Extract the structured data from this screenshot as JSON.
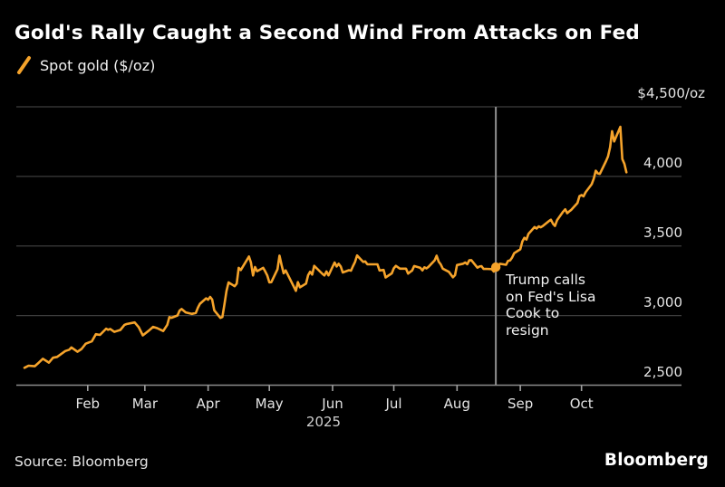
{
  "header": {
    "title": "Gold's Rally Caught a Second Wind From Attacks on Fed",
    "legend": {
      "marker_icon": "orange-slash-icon",
      "label": "Spot gold ($/oz)"
    }
  },
  "footer": {
    "source": "Source: Bloomberg",
    "logo": "Bloomberg"
  },
  "colors": {
    "background": "#000000",
    "line": "#F5A32B",
    "grid": "#3D3D3D",
    "axis": "#8C8C8C",
    "tick": "#A0A0A0",
    "event_line": "#8F8F8F",
    "title_text": "#FFFFFF",
    "label_text": "#E4E4E4"
  },
  "chart_data": {
    "type": "line",
    "title": "Gold's Rally Caught a Second Wind From Attacks on Fed",
    "x_axis": {
      "months": [
        "Feb",
        "Mar",
        "Apr",
        "May",
        "Jun",
        "Jul",
        "Aug",
        "Sep",
        "Oct"
      ],
      "year_label": "2025",
      "domain": [
        "2024-12-28",
        "2025-11-19"
      ],
      "grid": false
    },
    "y_axis": {
      "range": [
        2500,
        4500
      ],
      "unit": "$/oz",
      "ticks": [
        {
          "value": 4500,
          "label": "$4,500/oz"
        },
        {
          "value": 4000,
          "label": "4,000"
        },
        {
          "value": 3500,
          "label": "3,500"
        },
        {
          "value": 3000,
          "label": "3,000"
        },
        {
          "value": 2500,
          "label": "2,500"
        }
      ],
      "grid": true,
      "position": "right"
    },
    "annotation": {
      "date": "2025-08-20",
      "value": 3348,
      "text": "Trump calls on Fed's Lisa Cook to resign",
      "lines": [
        "Trump calls",
        "on Fed's Lisa",
        "Cook to",
        "resign"
      ]
    },
    "series": [
      {
        "name": "Spot gold ($/oz)",
        "points": [
          [
            "2025-01-01",
            2625
          ],
          [
            "2025-01-03",
            2640
          ],
          [
            "2025-01-06",
            2636
          ],
          [
            "2025-01-08",
            2662
          ],
          [
            "2025-01-10",
            2690
          ],
          [
            "2025-01-13",
            2662
          ],
          [
            "2025-01-15",
            2697
          ],
          [
            "2025-01-17",
            2703
          ],
          [
            "2025-01-21",
            2745
          ],
          [
            "2025-01-23",
            2755
          ],
          [
            "2025-01-24",
            2771
          ],
          [
            "2025-01-27",
            2740
          ],
          [
            "2025-01-29",
            2760
          ],
          [
            "2025-01-31",
            2798
          ],
          [
            "2025-02-03",
            2815
          ],
          [
            "2025-02-05",
            2866
          ],
          [
            "2025-02-07",
            2861
          ],
          [
            "2025-02-10",
            2906
          ],
          [
            "2025-02-11",
            2898
          ],
          [
            "2025-02-12",
            2904
          ],
          [
            "2025-02-14",
            2883
          ],
          [
            "2025-02-17",
            2897
          ],
          [
            "2025-02-19",
            2933
          ],
          [
            "2025-02-20",
            2939
          ],
          [
            "2025-02-24",
            2951
          ],
          [
            "2025-02-26",
            2916
          ],
          [
            "2025-02-28",
            2858
          ],
          [
            "2025-03-03",
            2892
          ],
          [
            "2025-03-05",
            2919
          ],
          [
            "2025-03-07",
            2910
          ],
          [
            "2025-03-10",
            2889
          ],
          [
            "2025-03-12",
            2934
          ],
          [
            "2025-03-13",
            2989
          ],
          [
            "2025-03-14",
            2984
          ],
          [
            "2025-03-17",
            3001
          ],
          [
            "2025-03-18",
            3035
          ],
          [
            "2025-03-19",
            3047
          ],
          [
            "2025-03-21",
            3023
          ],
          [
            "2025-03-24",
            3012
          ],
          [
            "2025-03-26",
            3019
          ],
          [
            "2025-03-27",
            3057
          ],
          [
            "2025-03-28",
            3085
          ],
          [
            "2025-03-31",
            3124
          ],
          [
            "2025-04-01",
            3114
          ],
          [
            "2025-04-02",
            3134
          ],
          [
            "2025-04-03",
            3115
          ],
          [
            "2025-04-04",
            3038
          ],
          [
            "2025-04-07",
            2983
          ],
          [
            "2025-04-08",
            2990
          ],
          [
            "2025-04-09",
            3083
          ],
          [
            "2025-04-10",
            3176
          ],
          [
            "2025-04-11",
            3238
          ],
          [
            "2025-04-14",
            3211
          ],
          [
            "2025-04-15",
            3230
          ],
          [
            "2025-04-16",
            3343
          ],
          [
            "2025-04-17",
            3327
          ],
          [
            "2025-04-21",
            3424
          ],
          [
            "2025-04-22",
            3381
          ],
          [
            "2025-04-23",
            3288
          ],
          [
            "2025-04-24",
            3349
          ],
          [
            "2025-04-25",
            3319
          ],
          [
            "2025-04-28",
            3343
          ],
          [
            "2025-04-29",
            3317
          ],
          [
            "2025-04-30",
            3288
          ],
          [
            "2025-05-01",
            3239
          ],
          [
            "2025-05-02",
            3240
          ],
          [
            "2025-05-05",
            3333
          ],
          [
            "2025-05-06",
            3431
          ],
          [
            "2025-05-07",
            3364
          ],
          [
            "2025-05-08",
            3304
          ],
          [
            "2025-05-09",
            3325
          ],
          [
            "2025-05-12",
            3236
          ],
          [
            "2025-05-14",
            3178
          ],
          [
            "2025-05-15",
            3240
          ],
          [
            "2025-05-16",
            3203
          ],
          [
            "2025-05-19",
            3230
          ],
          [
            "2025-05-20",
            3290
          ],
          [
            "2025-05-21",
            3315
          ],
          [
            "2025-05-22",
            3295
          ],
          [
            "2025-05-23",
            3357
          ],
          [
            "2025-05-27",
            3300
          ],
          [
            "2025-05-28",
            3288
          ],
          [
            "2025-05-29",
            3317
          ],
          [
            "2025-05-30",
            3289
          ],
          [
            "2025-06-02",
            3381
          ],
          [
            "2025-06-03",
            3353
          ],
          [
            "2025-06-04",
            3372
          ],
          [
            "2025-06-05",
            3353
          ],
          [
            "2025-06-06",
            3310
          ],
          [
            "2025-06-09",
            3326
          ],
          [
            "2025-06-10",
            3323
          ],
          [
            "2025-06-11",
            3355
          ],
          [
            "2025-06-12",
            3386
          ],
          [
            "2025-06-13",
            3432
          ],
          [
            "2025-06-16",
            3385
          ],
          [
            "2025-06-17",
            3389
          ],
          [
            "2025-06-18",
            3369
          ],
          [
            "2025-06-20",
            3368
          ],
          [
            "2025-06-23",
            3368
          ],
          [
            "2025-06-24",
            3324
          ],
          [
            "2025-06-26",
            3328
          ],
          [
            "2025-06-27",
            3274
          ],
          [
            "2025-06-30",
            3303
          ],
          [
            "2025-07-01",
            3339
          ],
          [
            "2025-07-02",
            3357
          ],
          [
            "2025-07-04",
            3337
          ],
          [
            "2025-07-07",
            3337
          ],
          [
            "2025-07-08",
            3301
          ],
          [
            "2025-07-09",
            3313
          ],
          [
            "2025-07-10",
            3324
          ],
          [
            "2025-07-11",
            3356
          ],
          [
            "2025-07-14",
            3343
          ],
          [
            "2025-07-15",
            3325
          ],
          [
            "2025-07-16",
            3347
          ],
          [
            "2025-07-17",
            3339
          ],
          [
            "2025-07-18",
            3350
          ],
          [
            "2025-07-21",
            3397
          ],
          [
            "2025-07-22",
            3430
          ],
          [
            "2025-07-23",
            3387
          ],
          [
            "2025-07-24",
            3368
          ],
          [
            "2025-07-25",
            3337
          ],
          [
            "2025-07-28",
            3314
          ],
          [
            "2025-07-30",
            3275
          ],
          [
            "2025-07-31",
            3290
          ],
          [
            "2025-08-01",
            3363
          ],
          [
            "2025-08-04",
            3373
          ],
          [
            "2025-08-05",
            3381
          ],
          [
            "2025-08-06",
            3369
          ],
          [
            "2025-08-07",
            3397
          ],
          [
            "2025-08-08",
            3398
          ],
          [
            "2025-08-11",
            3344
          ],
          [
            "2025-08-12",
            3353
          ],
          [
            "2025-08-13",
            3355
          ],
          [
            "2025-08-14",
            3335
          ],
          [
            "2025-08-15",
            3336
          ],
          [
            "2025-08-18",
            3334
          ],
          [
            "2025-08-19",
            3316
          ],
          [
            "2025-08-20",
            3348
          ],
          [
            "2025-08-21",
            3339
          ],
          [
            "2025-08-22",
            3372
          ],
          [
            "2025-08-25",
            3365
          ],
          [
            "2025-08-26",
            3393
          ],
          [
            "2025-08-27",
            3397
          ],
          [
            "2025-08-28",
            3417
          ],
          [
            "2025-08-29",
            3448
          ],
          [
            "2025-09-01",
            3476
          ],
          [
            "2025-09-02",
            3533
          ],
          [
            "2025-09-03",
            3559
          ],
          [
            "2025-09-04",
            3546
          ],
          [
            "2025-09-05",
            3587
          ],
          [
            "2025-09-08",
            3636
          ],
          [
            "2025-09-09",
            3625
          ],
          [
            "2025-09-10",
            3641
          ],
          [
            "2025-09-11",
            3634
          ],
          [
            "2025-09-12",
            3643
          ],
          [
            "2025-09-15",
            3679
          ],
          [
            "2025-09-16",
            3689
          ],
          [
            "2025-09-17",
            3660
          ],
          [
            "2025-09-18",
            3644
          ],
          [
            "2025-09-19",
            3685
          ],
          [
            "2025-09-22",
            3747
          ],
          [
            "2025-09-23",
            3764
          ],
          [
            "2025-09-24",
            3736
          ],
          [
            "2025-09-25",
            3749
          ],
          [
            "2025-09-26",
            3760
          ],
          [
            "2025-09-29",
            3809
          ],
          [
            "2025-09-30",
            3858
          ],
          [
            "2025-10-01",
            3866
          ],
          [
            "2025-10-02",
            3857
          ],
          [
            "2025-10-03",
            3886
          ],
          [
            "2025-10-06",
            3944
          ],
          [
            "2025-10-07",
            3984
          ],
          [
            "2025-10-08",
            4041
          ],
          [
            "2025-10-09",
            4021
          ],
          [
            "2025-10-10",
            4018
          ],
          [
            "2025-10-13",
            4110
          ],
          [
            "2025-10-14",
            4143
          ],
          [
            "2025-10-15",
            4209
          ],
          [
            "2025-10-16",
            4325
          ],
          [
            "2025-10-17",
            4251
          ],
          [
            "2025-10-20",
            4356
          ],
          [
            "2025-10-21",
            4125
          ],
          [
            "2025-10-22",
            4090
          ],
          [
            "2025-10-23",
            4030
          ]
        ]
      }
    ]
  }
}
